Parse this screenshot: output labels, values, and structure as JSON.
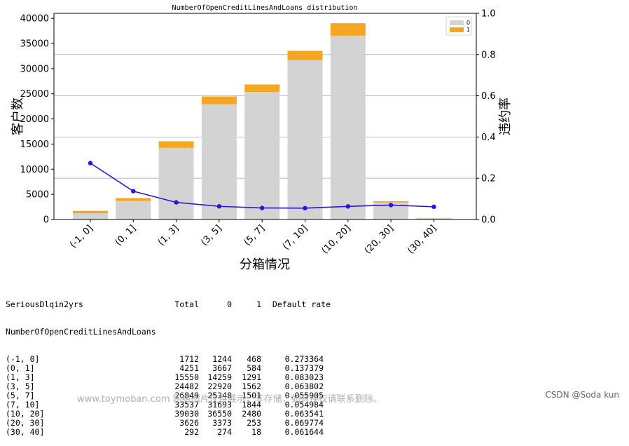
{
  "chart_data": {
    "type": "bar",
    "title": "NumberOfOpenCreditLinesAndLoans distribution",
    "xlabel": "分箱情况",
    "ylabel": "客户数",
    "y2label": "违约率",
    "categories": [
      "(-1, 0]",
      "(0, 1]",
      "(1, 3]",
      "(3, 5]",
      "(5, 7]",
      "(7, 10]",
      "(10, 20]",
      "(20, 30]",
      "(30, 40]"
    ],
    "series": [
      {
        "name": "0",
        "type": "bar",
        "stacked": true,
        "color": "#d3d3d3",
        "values": [
          1244,
          3667,
          14259,
          22920,
          25348,
          31693,
          36550,
          3373,
          274
        ]
      },
      {
        "name": "1",
        "type": "bar",
        "stacked": true,
        "color": "#f5a623",
        "values": [
          468,
          584,
          1291,
          1562,
          1501,
          1844,
          2480,
          253,
          18
        ]
      },
      {
        "type": "line",
        "axis": "right",
        "color": "#2a14e0",
        "values": [
          0.273364,
          0.137379,
          0.083023,
          0.063802,
          0.055905,
          0.054984,
          0.063541,
          0.069774,
          0.061644
        ]
      }
    ],
    "ylim": [
      0,
      41000
    ],
    "yticks": [
      0,
      5000,
      10000,
      15000,
      20000,
      25000,
      30000,
      35000,
      40000
    ],
    "y2lim": [
      0,
      1.0
    ],
    "y2ticks": [
      "0.0",
      "0.2",
      "0.4",
      "0.6",
      "0.8",
      "1.0"
    ],
    "grid": "horizontal at right-axis ticks",
    "legend": "top-right"
  },
  "table": {
    "header": [
      "SeriousDlqin2yrs",
      "Total",
      "0",
      "1",
      "Default rate"
    ],
    "index_name": "NumberOfOpenCreditLinesAndLoans",
    "rows": [
      [
        "(-1, 0]",
        "1712",
        "1244",
        "468",
        "0.273364"
      ],
      [
        "(0, 1]",
        "4251",
        "3667",
        "584",
        "0.137379"
      ],
      [
        "(1, 3]",
        "15550",
        "14259",
        "1291",
        "0.083023"
      ],
      [
        "(3, 5]",
        "24482",
        "22920",
        "1562",
        "0.063802"
      ],
      [
        "(5, 7]",
        "26849",
        "25348",
        "1501",
        "0.055905"
      ],
      [
        "(7, 10]",
        "33537",
        "31693",
        "1844",
        "0.054984"
      ],
      [
        "(10, 20]",
        "39030",
        "36550",
        "2480",
        "0.063541"
      ],
      [
        "(20, 30]",
        "3626",
        "3373",
        "253",
        "0.069774"
      ],
      [
        "(30, 40]",
        "292",
        "274",
        "18",
        "0.061644"
      ]
    ]
  },
  "watermark": "www.toymoban.com 网络图片仅供展示，非存储，如有侵权请联系删除。",
  "credit": "CSDN @Soda kun"
}
